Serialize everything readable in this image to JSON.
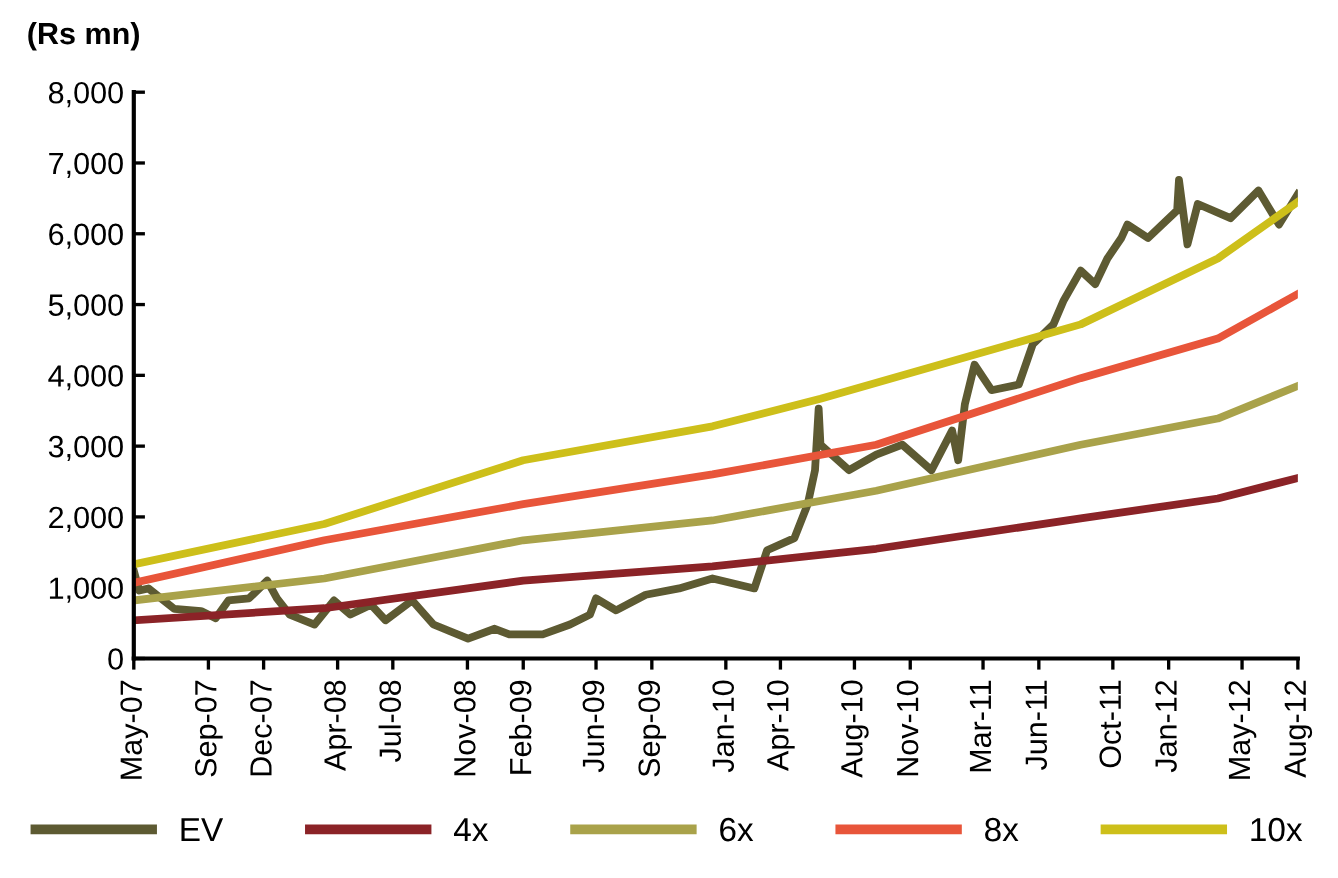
{
  "chart_data": {
    "type": "line",
    "ylabel": "(Rs mn)",
    "legend": "bottom",
    "grid": false,
    "marker": "none",
    "line_style": "solid",
    "xlim": [
      "2007-05-01",
      "2012-08-01"
    ],
    "xticks": [
      {
        "value": "2007-05-01",
        "label": "May-07"
      },
      {
        "value": "2007-09-01",
        "label": "Sep-07"
      },
      {
        "value": "2007-12-01",
        "label": "Dec-07"
      },
      {
        "value": "2008-04-01",
        "label": "Apr-08"
      },
      {
        "value": "2008-07-01",
        "label": "Jul-08"
      },
      {
        "value": "2008-11-01",
        "label": "Nov-08"
      },
      {
        "value": "2009-02-01",
        "label": "Feb-09"
      },
      {
        "value": "2009-06-01",
        "label": "Jun-09"
      },
      {
        "value": "2009-09-01",
        "label": "Sep-09"
      },
      {
        "value": "2010-01-01",
        "label": "Jan-10"
      },
      {
        "value": "2010-04-01",
        "label": "Apr-10"
      },
      {
        "value": "2010-08-01",
        "label": "Aug-10"
      },
      {
        "value": "2010-11-01",
        "label": "Nov-10"
      },
      {
        "value": "2011-03-01",
        "label": "Mar-11"
      },
      {
        "value": "2011-06-01",
        "label": "Jun-11"
      },
      {
        "value": "2011-10-01",
        "label": "Oct-11"
      },
      {
        "value": "2012-01-01",
        "label": "Jan-12"
      },
      {
        "value": "2012-05-01",
        "label": "May-12"
      },
      {
        "value": "2012-08-01",
        "label": "Aug-12"
      }
    ],
    "ylim": [
      0,
      8000
    ],
    "yticks": [
      0,
      {
        "value": 1000,
        "label": "1,000"
      },
      {
        "value": 2000,
        "label": "2,000"
      },
      {
        "value": 3000,
        "label": "3,000"
      },
      {
        "value": 4000,
        "label": "4,000"
      },
      {
        "value": 5000,
        "label": "5,000"
      },
      {
        "value": 6000,
        "label": "6,000"
      },
      {
        "value": 7000,
        "label": "7,000"
      },
      {
        "value": 8000,
        "label": "8,000"
      }
    ],
    "series": [
      {
        "name": "EV",
        "color": "#5d5a32",
        "x": [
          "2007-05-01",
          "2007-05-10",
          "2007-05-25",
          "2007-07-07",
          "2007-08-20",
          "2007-09-13",
          "2007-10-04",
          "2007-11-07",
          "2007-12-07",
          "2007-12-23",
          "2008-01-13",
          "2008-02-23",
          "2008-03-26",
          "2008-04-22",
          "2008-05-26",
          "2008-06-19",
          "2008-08-02",
          "2008-09-06",
          "2008-11-02",
          "2008-12-16",
          "2009-01-09",
          "2009-03-05",
          "2009-04-19",
          "2009-05-22",
          "2009-06-01",
          "2009-07-04",
          "2009-08-22",
          "2009-10-16",
          "2009-12-10",
          "2010-02-17",
          "2010-03-10",
          "2010-04-24",
          "2010-05-16",
          "2010-05-28",
          "2010-06-03",
          "2010-06-06",
          "2010-07-23",
          "2010-09-06",
          "2010-10-19",
          "2010-12-06",
          "2011-01-09",
          "2011-01-19",
          "2011-01-30",
          "2011-02-15",
          "2011-03-15",
          "2011-04-29",
          "2011-05-22",
          "2011-06-25",
          "2011-07-12",
          "2011-08-09",
          "2011-09-02",
          "2011-09-22",
          "2011-10-15",
          "2011-10-25",
          "2011-11-28",
          "2012-01-15",
          "2012-01-18",
          "2012-02-01",
          "2012-02-18",
          "2012-04-12",
          "2012-05-28",
          "2012-07-01",
          "2012-08-01"
        ],
        "values": [
          1240,
          960,
          990,
          700,
          670,
          570,
          820,
          850,
          1100,
          850,
          620,
          480,
          820,
          620,
          760,
          540,
          820,
          480,
          280,
          420,
          340,
          340,
          480,
          620,
          850,
          680,
          900,
          990,
          1130,
          990,
          1530,
          1700,
          2180,
          2660,
          3530,
          3020,
          2660,
          2880,
          3020,
          2660,
          3220,
          2800,
          3590,
          4150,
          3790,
          3870,
          4440,
          4720,
          5060,
          5480,
          5290,
          5650,
          5940,
          6130,
          5940,
          6330,
          6760,
          5850,
          6420,
          6220,
          6610,
          6130,
          6560
        ]
      },
      {
        "name": "4x",
        "color": "#8b2327",
        "x": [
          "2007-05-01",
          "2008-03-10",
          "2009-02-01",
          "2009-12-10",
          "2010-09-06",
          "2011-08-09",
          "2012-03-22",
          "2012-08-01"
        ],
        "values": [
          540,
          710,
          1100,
          1300,
          1550,
          1980,
          2260,
          2550
        ]
      },
      {
        "name": "6x",
        "color": "#a9a24a",
        "x": [
          "2007-05-01",
          "2008-03-10",
          "2009-02-01",
          "2009-12-10",
          "2010-09-06",
          "2011-08-09",
          "2012-03-22",
          "2012-08-01"
        ],
        "values": [
          820,
          1130,
          1670,
          1950,
          2370,
          3020,
          3390,
          3850
        ]
      },
      {
        "name": "8x",
        "color": "#e8553a",
        "x": [
          "2007-05-01",
          "2008-03-10",
          "2009-02-01",
          "2009-12-10",
          "2010-09-06",
          "2011-08-09",
          "2012-03-22",
          "2012-08-01"
        ],
        "values": [
          1070,
          1670,
          2180,
          2600,
          3020,
          3960,
          4520,
          5150
        ]
      },
      {
        "name": "10x",
        "color": "#cdbf1a",
        "x": [
          "2007-05-01",
          "2008-03-10",
          "2009-02-01",
          "2009-12-10",
          "2010-06-06",
          "2011-08-09",
          "2012-03-22",
          "2012-08-01"
        ],
        "values": [
          1330,
          1900,
          2800,
          3280,
          3670,
          4720,
          5650,
          6450
        ]
      }
    ]
  }
}
